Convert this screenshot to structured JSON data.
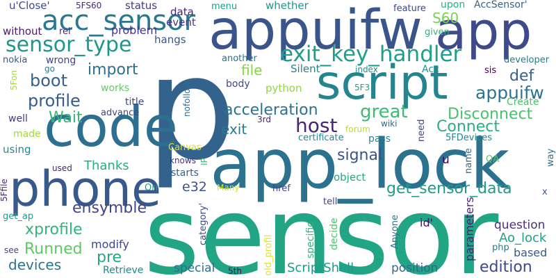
{
  "words": [
    {
      "text": "sensor",
      "color": "#21a585"
    },
    {
      "text": "p",
      "color": "#33638d"
    },
    {
      "text": "app_lock",
      "color": "#2c718e"
    },
    {
      "text": "appuifw",
      "color": "#3a548c"
    },
    {
      "text": "app",
      "color": "#3e4a89"
    },
    {
      "text": "code",
      "color": "#2e6e8e"
    },
    {
      "text": "script",
      "color": "#25858e"
    },
    {
      "text": "phone",
      "color": "#38598c"
    },
    {
      "text": "acc_sensor",
      "color": "#2a788e"
    },
    {
      "text": "exit_key_handler",
      "color": "#1f9e89"
    },
    {
      "text": "sensor_type",
      "color": "#1f968b"
    },
    {
      "text": "host",
      "color": "#482475"
    },
    {
      "text": "Connect",
      "color": "#29af7f"
    },
    {
      "text": "appuifw",
      "color": "#2c738e"
    },
    {
      "text": "profile",
      "color": "#365c8d"
    },
    {
      "text": "import",
      "color": "#2d708e"
    },
    {
      "text": "boot",
      "color": "#33638d"
    },
    {
      "text": "acceleration",
      "color": "#2d718e"
    },
    {
      "text": "great",
      "color": "#3bbb75"
    },
    {
      "text": "get_sensor_data",
      "color": "#1e9c89"
    },
    {
      "text": "signal",
      "color": "#3b528b"
    },
    {
      "text": "Disconnect",
      "color": "#4ac16d"
    },
    {
      "text": "ensymble",
      "color": "#404688"
    },
    {
      "text": "xprofile",
      "color": "#31b57b"
    },
    {
      "text": "Runned",
      "color": "#5ec962"
    },
    {
      "text": "devices",
      "color": "#2a768e"
    },
    {
      "text": "edition",
      "color": "#3e4989"
    },
    {
      "text": "def",
      "color": "#355f8d"
    },
    {
      "text": "Wait",
      "color": "#35b779"
    },
    {
      "text": "S60",
      "color": "#7ad151"
    },
    {
      "text": "file",
      "color": "#89d548"
    },
    {
      "text": "exit",
      "color": "#2a788e"
    },
    {
      "text": "Thanks",
      "color": "#26ad81"
    },
    {
      "text": "e32",
      "color": "#3b528b"
    },
    {
      "text": "pre",
      "color": "#22a884"
    },
    {
      "text": "modify",
      "color": "#3e4a89"
    },
    {
      "text": "Ao_lock",
      "color": "#1fa188"
    },
    {
      "text": "ScriptShell",
      "color": "#1f9a8a"
    },
    {
      "text": "position",
      "color": "#31688e"
    },
    {
      "text": "question",
      "color": "#46327e"
    },
    {
      "text": "special",
      "color": "#2e6e8e"
    },
    {
      "text": "based",
      "color": "#375b8d"
    },
    {
      "text": "problem",
      "color": "#453581"
    },
    {
      "text": "hangs",
      "color": "#39558c"
    },
    {
      "text": "event",
      "color": "#453781"
    },
    {
      "text": "data",
      "color": "#482374"
    },
    {
      "text": "status",
      "color": "#443983"
    },
    {
      "text": "whether",
      "color": "#1f988b"
    },
    {
      "text": "menu",
      "color": "#1e9d89"
    },
    {
      "text": "AccSensor'",
      "color": "#33638d"
    },
    {
      "text": "feature",
      "color": "#3f4788"
    },
    {
      "text": "upon",
      "color": "#2ab07f"
    },
    {
      "text": "given",
      "color": "#2db27d"
    },
    {
      "text": "developer",
      "color": "#2a788e"
    },
    {
      "text": "sis",
      "color": "#440154"
    },
    {
      "text": "Acc",
      "color": "#21918c"
    },
    {
      "text": "Silent",
      "color": "#25858e"
    },
    {
      "text": "index",
      "color": "#21908d"
    },
    {
      "text": "another",
      "color": "#2d708e"
    },
    {
      "text": "body",
      "color": "#3e4a89"
    },
    {
      "text": "python",
      "color": "#90d743"
    },
    {
      "text": "5F3",
      "color": "#20a386"
    },
    {
      "text": "u'Close'",
      "color": "#3e4989"
    },
    {
      "text": "5FS60",
      "color": "#472d7b"
    },
    {
      "text": "without",
      "color": "#48186a"
    },
    {
      "text": "rel",
      "color": "#482576"
    },
    {
      "text": "nokia",
      "color": "#38588c"
    },
    {
      "text": "wrong",
      "color": "#414287"
    },
    {
      "text": "go",
      "color": "#27808e"
    },
    {
      "text": "works",
      "color": "#65cb5e"
    },
    {
      "text": "title",
      "color": "#3f4889"
    },
    {
      "text": "advance",
      "color": "#404588"
    },
    {
      "text": "well",
      "color": "#453882"
    },
    {
      "text": "made",
      "color": "#a2da37"
    },
    {
      "text": "using",
      "color": "#24878e"
    },
    {
      "text": "5Fon",
      "color": "#a5db36"
    },
    {
      "text": "used",
      "color": "#482677"
    },
    {
      "text": "get_ap",
      "color": "#1f9e89"
    },
    {
      "text": "5Ffile",
      "color": "#472a7a"
    },
    {
      "text": "see",
      "color": "#414487"
    },
    {
      "text": "nofollow",
      "color": "#2f6c8e"
    },
    {
      "text": "Canvas",
      "color": "#d8e219"
    },
    {
      "text": "starts",
      "color": "#34618d"
    },
    {
      "text": "IP",
      "color": "#3fbc73"
    },
    {
      "text": "knows",
      "color": "#46337f"
    },
    {
      "text": "Ori",
      "color": "#1f9f88"
    },
    {
      "text": "Many",
      "color": "#d2e21b"
    },
    {
      "text": "category'",
      "color": "#3d4d8a"
    },
    {
      "text": "Retrieve",
      "color": "#25848e"
    },
    {
      "text": "5th",
      "color": "#471063"
    },
    {
      "text": "old_profil",
      "color": "#e2e418"
    },
    {
      "text": "3rd",
      "color": "#481f70"
    },
    {
      "text": "forum",
      "color": "#bade28"
    },
    {
      "text": "certificate",
      "color": "#23898e"
    },
    {
      "text": "wiki",
      "color": "#31688e"
    },
    {
      "text": "pass",
      "color": "#26828e"
    },
    {
      "text": "need",
      "color": "#414487"
    },
    {
      "text": "object",
      "color": "#22a785"
    },
    {
      "text": "href",
      "color": "#3f4788"
    },
    {
      "text": "tell",
      "color": "#424086"
    },
    {
      "text": "specific",
      "color": "#31b57b"
    },
    {
      "text": "decide",
      "color": "#4ec36b"
    },
    {
      "text": "Anyone",
      "color": "#2c718e"
    },
    {
      "text": "id'",
      "color": "#471164"
    },
    {
      "text": "parameters",
      "color": "#482475"
    },
    {
      "text": "php",
      "color": "#29798e"
    },
    {
      "text": "u",
      "color": "#440154"
    },
    {
      "text": "name",
      "color": "#31678e"
    },
    {
      "text": "QA",
      "color": "#56c667"
    },
    {
      "text": "x",
      "color": "#38598c"
    },
    {
      "text": "way",
      "color": "#2e6f8e"
    },
    {
      "text": "5FDevices",
      "color": "#24868e"
    },
    {
      "text": "Create",
      "color": "#4cc26c"
    }
  ]
}
